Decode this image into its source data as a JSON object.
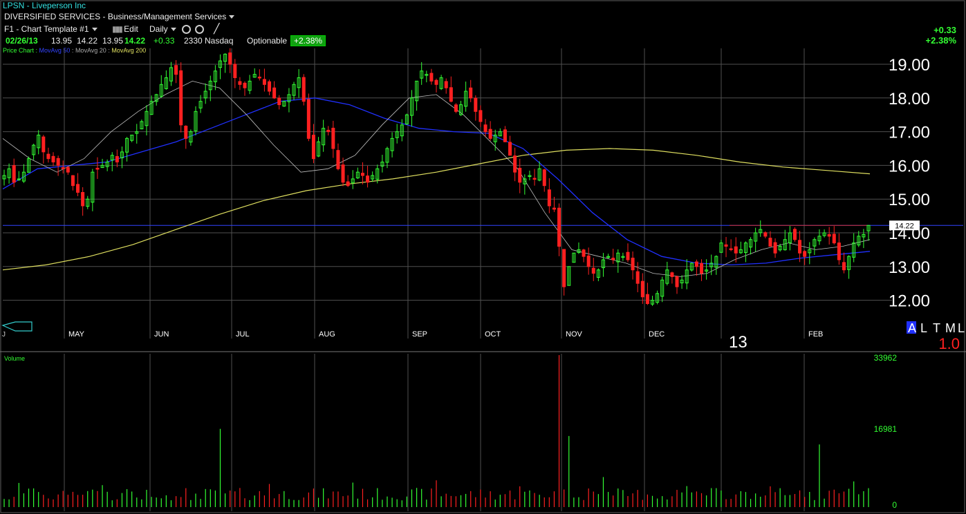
{
  "header": {
    "title": "LPSN - Liveperson Inc",
    "sector": "DIVERSIFIED SERVICES - Business/Management Services",
    "template": "F1 - Chart Template #1",
    "edit": "Edit",
    "period": "Daily"
  },
  "quote": {
    "date": "02/26/13",
    "open": "13.95",
    "high": "14.22",
    "low": "13.95",
    "close": "14.22",
    "change": "+0.33",
    "volume": "2330",
    "exchange": "Nasdaq",
    "optionable": "Optionable",
    "pct": "+2.38%"
  },
  "right_change": {
    "chg": "+0.33",
    "pct": "+2.38%"
  },
  "legend": {
    "price_chart": "Price Chart :",
    "ma50": "MovAvg 50",
    "ma20": "MovAvg 20",
    "ma200": "MovAvg 200",
    "sep": ":"
  },
  "timeframe": {
    "buttons": [
      "A",
      "L",
      "T",
      "M",
      "L"
    ],
    "zoom": "1.0",
    "year": "13"
  },
  "price_label": "14.22",
  "volume_panel": {
    "title": "Volume",
    "ticks": [
      "33962",
      "16981",
      "0"
    ]
  },
  "colors": {
    "up": "#33ff33",
    "down": "#ff2020",
    "ma50": "#2030ff",
    "ma20": "#c0c0c0",
    "ma200": "#e0e060",
    "grid": "#505050"
  },
  "chart_data": {
    "type": "candlestick",
    "ylim": [
      11.5,
      19.5
    ],
    "yticks": [
      "19.00",
      "18.00",
      "17.00",
      "16.00",
      "15.00",
      "14.00",
      "13.00",
      "12.00"
    ],
    "months": [
      "MAY",
      "JUN",
      "JUL",
      "AUG",
      "SEP",
      "OCT",
      "NOV",
      "DEC",
      "FEB"
    ],
    "last_price": 14.22,
    "close_path": [
      15.7,
      15.9,
      15.5,
      15.6,
      15.8,
      16.2,
      16.6,
      16.9,
      16.4,
      16.2,
      16.1,
      16.0,
      15.9,
      15.8,
      15.4,
      15.2,
      14.8,
      15.0,
      15.8,
      15.9,
      16.0,
      16.1,
      16.3,
      16.1,
      16.4,
      16.8,
      16.9,
      17.0,
      17.3,
      17.6,
      17.9,
      18.1,
      18.4,
      18.6,
      18.9,
      18.7,
      17.2,
      16.8,
      17.0,
      17.6,
      17.9,
      18.2,
      18.5,
      18.8,
      19.1,
      19.3,
      19.0,
      18.6,
      18.4,
      18.3,
      18.5,
      18.7,
      18.6,
      18.4,
      18.2,
      18.0,
      17.8,
      17.9,
      18.1,
      18.4,
      18.6,
      17.9,
      16.8,
      16.2,
      16.7,
      17.1,
      17.0,
      16.5,
      15.9,
      15.5,
      15.4,
      15.6,
      15.8,
      15.7,
      15.5,
      15.7,
      15.9,
      16.1,
      16.5,
      16.8,
      17.0,
      17.2,
      17.5,
      18.0,
      18.5,
      18.8,
      18.7,
      18.5,
      18.4,
      18.6,
      18.3,
      17.9,
      17.6,
      17.8,
      18.2,
      18.0,
      17.6,
      17.3,
      17.0,
      16.8,
      16.9,
      17.0,
      16.7,
      16.3,
      15.8,
      15.5,
      15.6,
      15.7,
      15.6,
      15.9,
      15.4,
      14.8,
      14.7,
      13.6,
      12.4,
      13.0,
      13.4,
      13.5,
      13.3,
      13.0,
      12.8,
      12.9,
      13.2,
      13.3,
      13.2,
      13.4,
      13.3,
      13.2,
      12.9,
      12.5,
      12.1,
      11.9,
      12.0,
      12.2,
      12.6,
      12.9,
      12.7,
      12.4,
      12.6,
      12.9,
      13.1,
      13.0,
      12.8,
      12.9,
      13.1,
      13.3,
      13.7,
      13.6,
      13.5,
      13.4,
      13.5,
      13.7,
      13.8,
      14.0,
      14.1,
      13.9,
      13.6,
      13.4,
      13.6,
      13.8,
      14.0,
      13.8,
      13.4,
      13.3,
      13.5,
      13.8,
      13.9,
      14.0,
      13.9,
      13.7,
      13.2,
      12.9,
      13.3,
      13.7,
      13.9,
      13.95,
      14.22
    ],
    "ma200": [
      12.9,
      13.05,
      13.3,
      13.65,
      14.1,
      14.55,
      14.95,
      15.25,
      15.45,
      15.6,
      15.8,
      16.05,
      16.3,
      16.45,
      16.5,
      16.45,
      16.3,
      16.1,
      15.95,
      15.85,
      15.75
    ],
    "ma50": [
      15.3,
      15.9,
      16.0,
      16.1,
      16.4,
      16.7,
      17.1,
      17.5,
      17.9,
      18.0,
      17.8,
      17.4,
      17.1,
      17.0,
      16.95,
      16.5,
      15.6,
      14.6,
      13.8,
      13.3,
      13.1,
      13.05,
      13.1,
      13.25,
      13.35,
      13.45
    ],
    "ma20": [
      16.8,
      16.2,
      15.8,
      16.2,
      17.0,
      17.6,
      18.1,
      18.5,
      18.3,
      17.5,
      16.6,
      15.8,
      15.9,
      16.3,
      17.2,
      18.0,
      18.1,
      17.5,
      16.7,
      15.9,
      14.6,
      13.5,
      13.3,
      13.1,
      12.8,
      12.7,
      12.8,
      13.2,
      13.5,
      13.7,
      13.5,
      13.6,
      13.8
    ]
  }
}
